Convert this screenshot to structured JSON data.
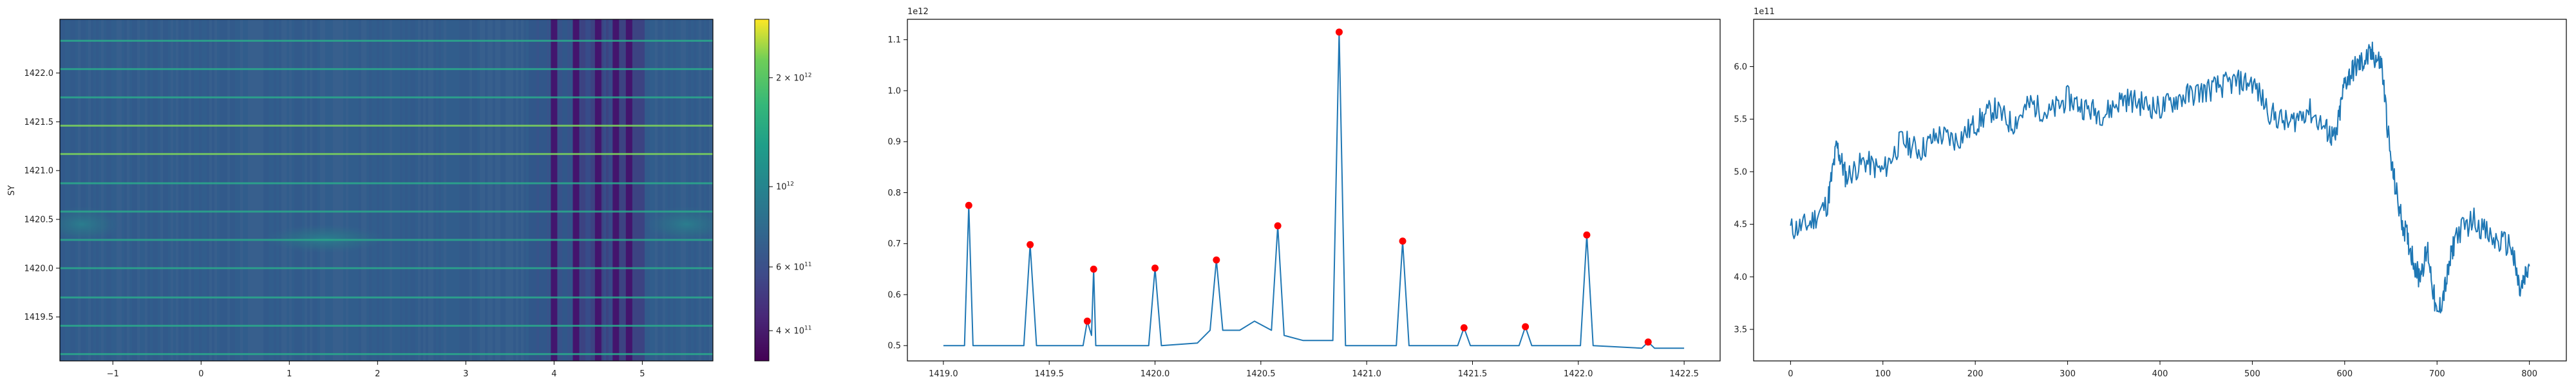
{
  "figure": {
    "background": "#ffffff"
  },
  "chart_data": [
    {
      "type": "heatmap",
      "title": "",
      "xlabel": "",
      "ylabel": "SY",
      "xlim": [
        -1.6,
        5.8
      ],
      "ylim": [
        1419.05,
        1422.55
      ],
      "x_ticks": [
        -1,
        0,
        1,
        2,
        3,
        4,
        5
      ],
      "y_ticks": [
        1419.5,
        1420.0,
        1420.5,
        1421.0,
        1421.5,
        1422.0
      ],
      "y_tick_labels": [
        "1419.5",
        "1420.0",
        "1420.5",
        "1421.0",
        "1421.5",
        "1422.0"
      ],
      "colormap": "viridis",
      "color_scale": "log",
      "colorbar_ticks": [
        {
          "value": 400000000000,
          "base": "4 × 10",
          "exp": "11"
        },
        {
          "value": 600000000000,
          "base": "6 × 10",
          "exp": "11"
        },
        {
          "value": 1000000000000,
          "base": "10",
          "exp": "12"
        },
        {
          "value": 2000000000000,
          "base": "2 × 10",
          "exp": "12"
        }
      ],
      "colorbar_range": [
        330000000000,
        2900000000000
      ],
      "bright_rows_y": [
        1419.12,
        1419.41,
        1419.7,
        1420.0,
        1420.29,
        1420.58,
        1420.87,
        1421.17,
        1421.46,
        1421.75,
        1422.04,
        1422.33
      ],
      "dark_bands_x": [
        4.0,
        4.25,
        4.5,
        4.7,
        4.85
      ]
    },
    {
      "type": "line",
      "title": "",
      "xlabel": "",
      "ylabel": "",
      "offset_label": "1e12",
      "color": "#1f77b4",
      "marker_color": "#ff0000",
      "xlim": [
        1418.83,
        1422.67
      ],
      "ylim": [
        0.47,
        1.14
      ],
      "x_ticks": [
        1419.0,
        1419.5,
        1420.0,
        1420.5,
        1421.0,
        1421.5,
        1422.0,
        1422.5
      ],
      "x_tick_labels": [
        "1419.0",
        "1419.5",
        "1420.0",
        "1420.5",
        "1421.0",
        "1421.5",
        "1422.0",
        "1422.5"
      ],
      "y_ticks": [
        0.5,
        0.6,
        0.7,
        0.8,
        0.9,
        1.0,
        1.1
      ],
      "y_tick_labels": [
        "0.5",
        "0.6",
        "0.7",
        "0.8",
        "0.9",
        "1.0",
        "1.1"
      ],
      "x": [
        1419.0,
        1419.1,
        1419.12,
        1419.14,
        1419.38,
        1419.41,
        1419.44,
        1419.66,
        1419.68,
        1419.7,
        1419.71,
        1419.72,
        1419.75,
        1419.97,
        1420.0,
        1420.03,
        1420.2,
        1420.26,
        1420.29,
        1420.32,
        1420.4,
        1420.47,
        1420.55,
        1420.58,
        1420.61,
        1420.7,
        1420.84,
        1420.87,
        1420.9,
        1421.0,
        1421.14,
        1421.17,
        1421.2,
        1421.43,
        1421.46,
        1421.49,
        1421.72,
        1421.75,
        1421.78,
        1422.01,
        1422.04,
        1422.07,
        1422.3,
        1422.33,
        1422.36,
        1422.5
      ],
      "y": [
        0.5,
        0.5,
        0.775,
        0.5,
        0.5,
        0.698,
        0.5,
        0.5,
        0.548,
        0.52,
        0.65,
        0.5,
        0.5,
        0.5,
        0.652,
        0.5,
        0.505,
        0.53,
        0.668,
        0.53,
        0.53,
        0.548,
        0.53,
        0.735,
        0.52,
        0.51,
        0.51,
        1.115,
        0.5,
        0.5,
        0.5,
        0.705,
        0.5,
        0.5,
        0.535,
        0.5,
        0.5,
        0.537,
        0.5,
        0.5,
        0.717,
        0.5,
        0.495,
        0.507,
        0.495,
        0.495
      ],
      "peaks": [
        {
          "x": 1419.12,
          "y": 0.775
        },
        {
          "x": 1419.41,
          "y": 0.698
        },
        {
          "x": 1419.68,
          "y": 0.548
        },
        {
          "x": 1419.71,
          "y": 0.65
        },
        {
          "x": 1420.0,
          "y": 0.652
        },
        {
          "x": 1420.29,
          "y": 0.668
        },
        {
          "x": 1420.58,
          "y": 0.735
        },
        {
          "x": 1420.87,
          "y": 1.115
        },
        {
          "x": 1421.17,
          "y": 0.705
        },
        {
          "x": 1421.46,
          "y": 0.535
        },
        {
          "x": 1421.75,
          "y": 0.537
        },
        {
          "x": 1422.04,
          "y": 0.717
        },
        {
          "x": 1422.33,
          "y": 0.507
        }
      ]
    },
    {
      "type": "line",
      "title": "",
      "xlabel": "",
      "ylabel": "",
      "offset_label": "1e11",
      "color": "#1f77b4",
      "xlim": [
        -40,
        840
      ],
      "ylim": [
        3.2,
        6.45
      ],
      "x_ticks": [
        0,
        100,
        200,
        300,
        400,
        500,
        600,
        700,
        800
      ],
      "x_tick_labels": [
        "0",
        "100",
        "200",
        "300",
        "400",
        "500",
        "600",
        "700",
        "800"
      ],
      "y_ticks": [
        3.5,
        4.0,
        4.5,
        5.0,
        5.5,
        6.0
      ],
      "y_tick_labels": [
        "3.5",
        "4.0",
        "4.5",
        "5.0",
        "5.5",
        "6.0"
      ],
      "x": [
        0,
        20,
        40,
        50,
        60,
        80,
        100,
        120,
        140,
        160,
        180,
        200,
        220,
        240,
        260,
        280,
        300,
        320,
        340,
        360,
        380,
        400,
        420,
        440,
        460,
        480,
        500,
        520,
        540,
        560,
        580,
        590,
        600,
        610,
        620,
        630,
        640,
        650,
        660,
        670,
        680,
        690,
        700,
        710,
        720,
        740,
        760,
        780,
        790,
        800
      ],
      "y": [
        4.45,
        4.5,
        4.7,
        5.25,
        4.95,
        5.1,
        5.0,
        5.3,
        5.2,
        5.35,
        5.3,
        5.45,
        5.6,
        5.45,
        5.65,
        5.55,
        5.7,
        5.6,
        5.55,
        5.7,
        5.65,
        5.6,
        5.7,
        5.75,
        5.8,
        5.85,
        5.85,
        5.55,
        5.45,
        5.6,
        5.4,
        5.3,
        5.85,
        5.98,
        6.05,
        6.12,
        6.02,
        5.1,
        4.6,
        4.3,
        4.0,
        4.25,
        3.6,
        3.95,
        4.4,
        4.55,
        4.35,
        4.3,
        3.85,
        4.1
      ],
      "noise_amplitude": 0.12,
      "points_per_segment": 16
    }
  ]
}
